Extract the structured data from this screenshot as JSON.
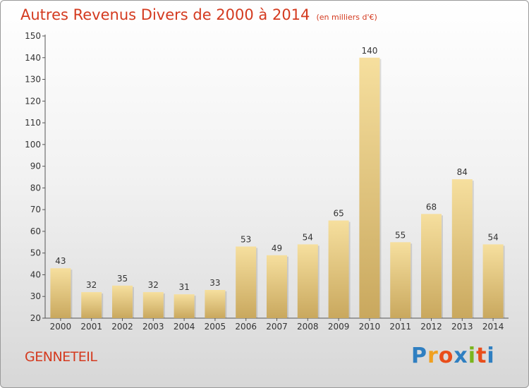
{
  "chart_data": {
    "type": "bar",
    "title": "Autres Revenus Divers de 2000 à 2014",
    "subtitle": "(en milliers d'€)",
    "categories": [
      "2000",
      "2001",
      "2002",
      "2003",
      "2004",
      "2005",
      "2006",
      "2007",
      "2008",
      "2009",
      "2010",
      "2011",
      "2012",
      "2013",
      "2014"
    ],
    "values": [
      43,
      32,
      35,
      32,
      31,
      33,
      53,
      49,
      54,
      65,
      140,
      55,
      68,
      84,
      54
    ],
    "ylim": [
      20,
      150
    ],
    "yticks": [
      20,
      30,
      40,
      50,
      60,
      70,
      80,
      90,
      100,
      110,
      120,
      130,
      140,
      150
    ],
    "grid": false,
    "bar_color": "#e8c97a"
  },
  "footer": {
    "place": "GENNETEIL",
    "logo_letters": [
      "P",
      "r",
      "o",
      "x",
      "i",
      "t",
      "i"
    ],
    "logo_colors": [
      "#2f7fc1",
      "#f0a020",
      "#e94e1b",
      "#2f7fc1",
      "#7ab51d",
      "#e94e1b",
      "#2f7fc1"
    ]
  }
}
